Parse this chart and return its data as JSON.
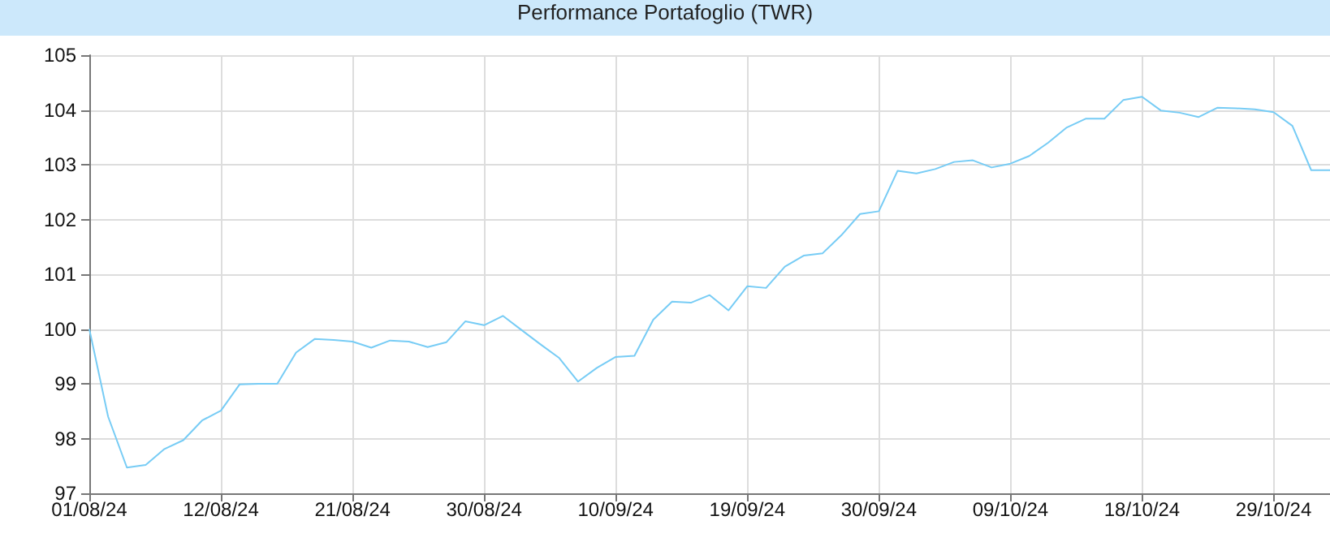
{
  "chart_data": {
    "type": "line",
    "title": "Performance Portafoglio (TWR)",
    "categories": [
      "01/08/24",
      null,
      null,
      null,
      null,
      null,
      null,
      "12/08/24",
      null,
      null,
      null,
      null,
      null,
      null,
      "21/08/24",
      null,
      null,
      null,
      null,
      null,
      null,
      "30/08/24",
      null,
      null,
      null,
      null,
      null,
      null,
      "10/09/24",
      null,
      null,
      null,
      null,
      null,
      null,
      "19/09/24",
      null,
      null,
      null,
      null,
      null,
      null,
      "30/09/24",
      null,
      null,
      null,
      null,
      null,
      null,
      "09/10/24",
      null,
      null,
      null,
      null,
      null,
      null,
      "18/10/24",
      null,
      null,
      null,
      null,
      null,
      null,
      "29/10/24",
      null,
      null,
      null
    ],
    "series": [
      {
        "color": "#77ccf5",
        "values": [
          100.0,
          98.4,
          97.47,
          97.52,
          97.81,
          97.97,
          98.33,
          98.51,
          98.99,
          99.0,
          99.0,
          99.57,
          99.82,
          99.8,
          99.77,
          99.66,
          99.79,
          99.77,
          99.67,
          99.76,
          100.14,
          100.07,
          100.24,
          99.98,
          99.72,
          99.47,
          99.04,
          99.29,
          99.49,
          99.51,
          100.17,
          100.5,
          100.48,
          100.62,
          100.34,
          100.78,
          100.75,
          101.14,
          101.34,
          101.38,
          101.71,
          102.1,
          102.15,
          102.89,
          102.84,
          102.92,
          103.05,
          103.08,
          102.95,
          103.02,
          103.16,
          103.4,
          103.68,
          103.84,
          103.84,
          104.18,
          104.24,
          103.99,
          103.95,
          103.87,
          104.04,
          104.03,
          104.01,
          103.96,
          103.71,
          102.9,
          102.9
        ]
      }
    ],
    "ylim": [
      97,
      105
    ],
    "yticks": [
      97,
      98,
      99,
      100,
      101,
      102,
      103,
      104,
      105
    ],
    "grid": true,
    "marker": "none",
    "line_style": "solid"
  }
}
